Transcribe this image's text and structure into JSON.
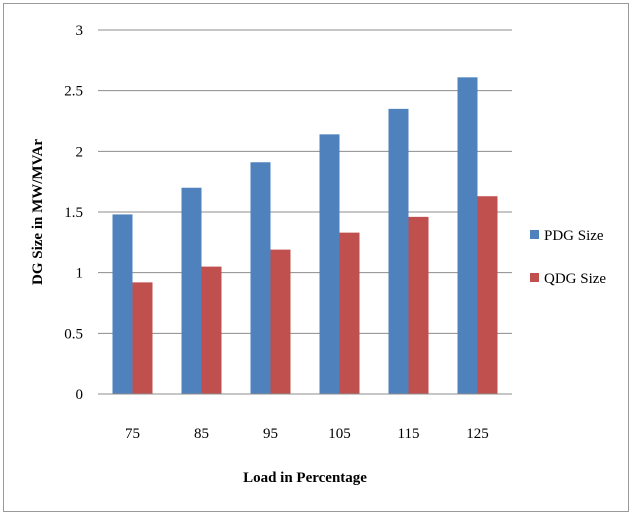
{
  "chart_data": {
    "type": "bar",
    "title": "",
    "xlabel": "Load in Percentage",
    "ylabel": "DG Size in MW/MVAr",
    "categories": [
      "75",
      "85",
      "95",
      "105",
      "115",
      "125"
    ],
    "series": [
      {
        "name": "PDG Size",
        "color": "#4f81bd",
        "values": [
          1.48,
          1.7,
          1.91,
          2.14,
          2.35,
          2.61
        ]
      },
      {
        "name": "QDG Size",
        "color": "#c0504d",
        "values": [
          0.92,
          1.05,
          1.19,
          1.33,
          1.46,
          1.63
        ]
      }
    ],
    "ylim": [
      0,
      3
    ],
    "yticks": [
      "0",
      "0.5",
      "1",
      "1.5",
      "2",
      "2.5",
      "3"
    ],
    "grid": true,
    "legend": "right"
  }
}
